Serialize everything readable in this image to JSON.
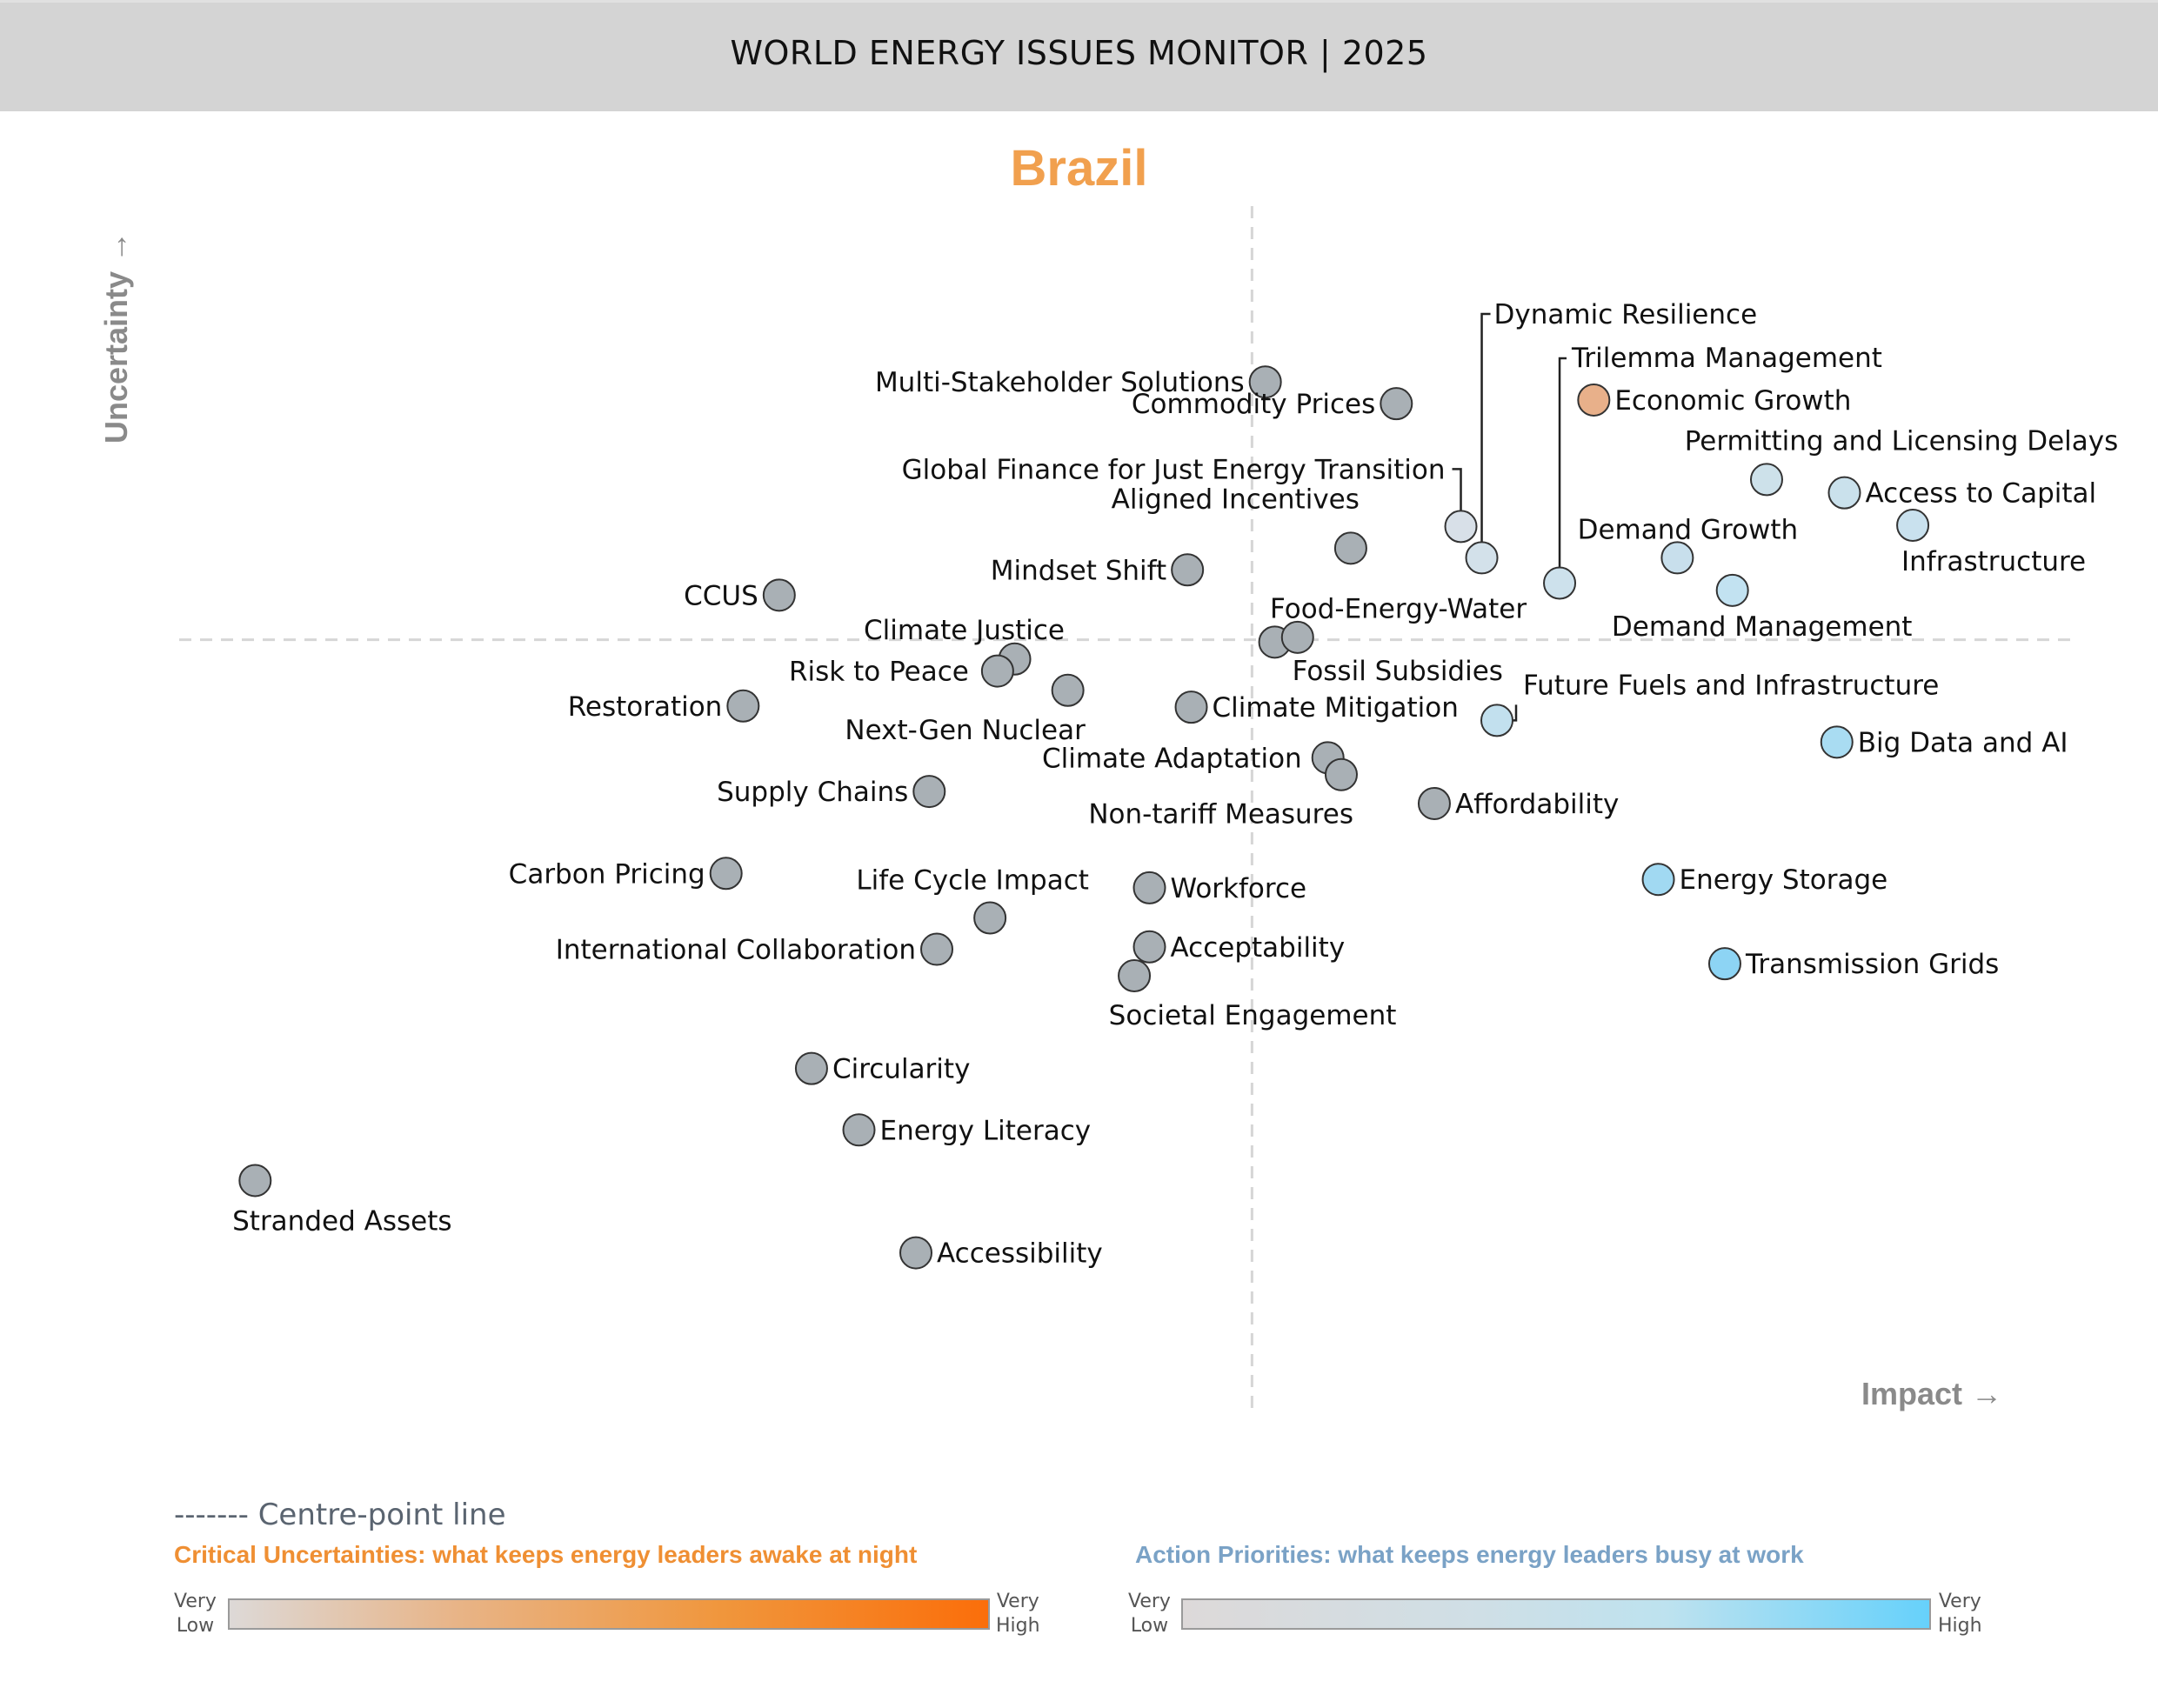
{
  "header": {
    "title": "WORLD ENERGY ISSUES MONITOR | 2025"
  },
  "country": "Brazil",
  "axes": {
    "y_label": "Uncertainty →",
    "x_label": "Impact →"
  },
  "legend": {
    "centre_line": "------- Centre-point line",
    "critical_uncertainties": {
      "title": "Critical Uncertainties: what keeps energy leaders awake at night",
      "low": "Very Low",
      "high": "Very High",
      "colors": [
        "#ddd9d7",
        "#fb6e0a"
      ]
    },
    "action_priorities": {
      "title": "Action Priorities: what keeps energy leaders busy at work",
      "low": "Very Low",
      "high": "Very High",
      "colors": [
        "#ddd9d9",
        "#66d1fb"
      ]
    }
  },
  "chart_data": {
    "type": "scatter",
    "title": "Brazil",
    "xlabel": "Impact",
    "ylabel": "Uncertainty",
    "xlim": [
      0,
      100
    ],
    "ylim": [
      0,
      100
    ],
    "centre_point": {
      "x": 56.5,
      "y": 64.0
    },
    "grid": false,
    "points": [
      {
        "label": "Multi-Stakeholder Solutions",
        "x": 57.2,
        "y": 85.4,
        "color": "#a9b0b5",
        "label_pos": "left"
      },
      {
        "label": "Commodity Prices",
        "x": 64.1,
        "y": 83.6,
        "color": "#a9b0b5",
        "label_pos": "left"
      },
      {
        "label": "Global Finance for Just Energy Transition",
        "x": 67.5,
        "y": 73.4,
        "color": "#d8e0e8",
        "label_pos": "leader-left"
      },
      {
        "label": "Dynamic Resilience",
        "x": 68.6,
        "y": 70.8,
        "color": "#d3e1ea",
        "label_pos": "leader-up"
      },
      {
        "label": "Aligned Incentives",
        "x": 61.7,
        "y": 71.6,
        "color": "#a9b0b5",
        "label_pos": "above-left"
      },
      {
        "label": "Trilemma Management",
        "x": 72.7,
        "y": 68.7,
        "color": "#cde1ec",
        "label_pos": "leader-up"
      },
      {
        "label": "Economic Growth",
        "x": 74.5,
        "y": 83.9,
        "color": "#e8b08a",
        "label_pos": "right"
      },
      {
        "label": "Permitting and Licensing Delays",
        "x": 83.6,
        "y": 77.3,
        "color": "#cde1ea",
        "label_pos": "above"
      },
      {
        "label": "Access to Capital",
        "x": 87.7,
        "y": 76.2,
        "color": "#cae1ec",
        "label_pos": "right"
      },
      {
        "label": "Infrastructure",
        "x": 91.3,
        "y": 73.5,
        "color": "#c9e1ee",
        "label_pos": "below"
      },
      {
        "label": "Demand Growth",
        "x": 78.9,
        "y": 70.8,
        "color": "#c8dfec",
        "label_pos": "above"
      },
      {
        "label": "Demand Management",
        "x": 81.8,
        "y": 68.1,
        "color": "#c2e2f1",
        "label_pos": "below"
      },
      {
        "label": "Mindset Shift",
        "x": 53.1,
        "y": 69.8,
        "color": "#a9b0b5",
        "label_pos": "left"
      },
      {
        "label": "CCUS",
        "x": 31.6,
        "y": 67.7,
        "color": "#a9b0b5",
        "label_pos": "left"
      },
      {
        "label": "Food-Energy-Water",
        "x": 57.7,
        "y": 63.8,
        "color": "#a9b0b5",
        "label_pos": "above"
      },
      {
        "label": "Fossil Subsidies",
        "x": 58.9,
        "y": 64.2,
        "color": "#a9b0b5",
        "label_pos": "below"
      },
      {
        "label": "Climate Justice",
        "x": 44.0,
        "y": 62.4,
        "color": "#a9b0b5",
        "label_pos": "above"
      },
      {
        "label": "Risk to Peace",
        "x": 43.1,
        "y": 61.4,
        "color": "#a9b0b5",
        "label_pos": "left"
      },
      {
        "label": "Next-Gen Nuclear",
        "x": 46.8,
        "y": 59.8,
        "color": "#a9b0b5",
        "label_pos": "below"
      },
      {
        "label": "Restoration",
        "x": 29.7,
        "y": 58.5,
        "color": "#a9b0b5",
        "label_pos": "left"
      },
      {
        "label": "Climate Mitigation",
        "x": 53.3,
        "y": 58.4,
        "color": "#a9b0b5",
        "label_pos": "right"
      },
      {
        "label": "Future Fuels and Infrastructure",
        "x": 69.4,
        "y": 57.3,
        "color": "#c2e0ee",
        "label_pos": "leader-right"
      },
      {
        "label": "Big Data and AI",
        "x": 87.3,
        "y": 55.5,
        "color": "#a9dcf2",
        "label_pos": "right"
      },
      {
        "label": "Climate Adaptation",
        "x": 60.5,
        "y": 54.2,
        "color": "#a9b0b5",
        "label_pos": "left"
      },
      {
        "label": "Non-tariff Measures",
        "x": 61.2,
        "y": 52.8,
        "color": "#a9b0b5",
        "label_pos": "below-left"
      },
      {
        "label": "Affordability",
        "x": 66.1,
        "y": 50.4,
        "color": "#a9b0b5",
        "label_pos": "right"
      },
      {
        "label": "Supply Chains",
        "x": 39.5,
        "y": 51.4,
        "color": "#a9b0b5",
        "label_pos": "left"
      },
      {
        "label": "Carbon Pricing",
        "x": 28.8,
        "y": 44.6,
        "color": "#a9b0b5",
        "label_pos": "left"
      },
      {
        "label": "Energy Storage",
        "x": 77.9,
        "y": 44.1,
        "color": "#a1d9f2",
        "label_pos": "right"
      },
      {
        "label": "Life Cycle Impact",
        "x": 42.7,
        "y": 40.9,
        "color": "#a9b0b5",
        "label_pos": "above"
      },
      {
        "label": "Workforce",
        "x": 51.1,
        "y": 43.4,
        "color": "#a9b0b5",
        "label_pos": "right"
      },
      {
        "label": "International Collaboration",
        "x": 39.9,
        "y": 38.3,
        "color": "#a9b0b5",
        "label_pos": "left"
      },
      {
        "label": "Acceptability",
        "x": 51.1,
        "y": 38.5,
        "color": "#a9b0b5",
        "label_pos": "right"
      },
      {
        "label": "Societal Engagement",
        "x": 50.3,
        "y": 36.1,
        "color": "#a9b0b5",
        "label_pos": "below"
      },
      {
        "label": "Transmission Grids",
        "x": 81.4,
        "y": 37.1,
        "color": "#8dd4f4",
        "label_pos": "right"
      },
      {
        "label": "Circularity",
        "x": 33.3,
        "y": 28.4,
        "color": "#a9b0b5",
        "label_pos": "right"
      },
      {
        "label": "Energy Literacy",
        "x": 35.8,
        "y": 23.3,
        "color": "#a9b0b5",
        "label_pos": "right"
      },
      {
        "label": "Stranded Assets",
        "x": 4.0,
        "y": 19.1,
        "color": "#a9b0b5",
        "label_pos": "below"
      },
      {
        "label": "Accessibility",
        "x": 38.8,
        "y": 13.1,
        "color": "#a9b0b5",
        "label_pos": "right"
      }
    ]
  }
}
